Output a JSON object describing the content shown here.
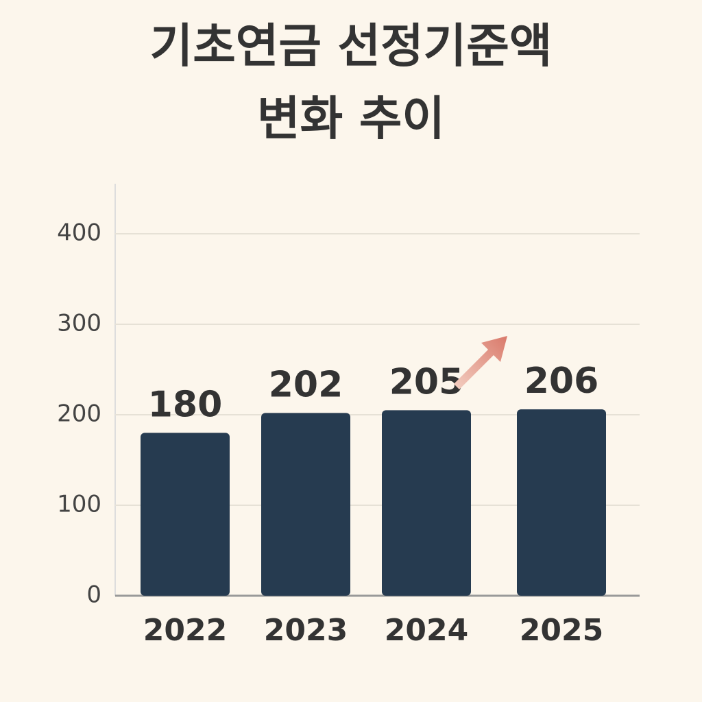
{
  "chart_data": {
    "type": "bar",
    "title": [
      "기초연금 선정기준액",
      "변화 추이"
    ],
    "categories": [
      "2022",
      "2023",
      "2024",
      "2025"
    ],
    "values": [
      180,
      202,
      205,
      206
    ],
    "color": "#263b50",
    "ylim": [
      0,
      450
    ],
    "yticks": [
      0,
      100,
      200,
      300,
      400
    ],
    "grid": true
  }
}
